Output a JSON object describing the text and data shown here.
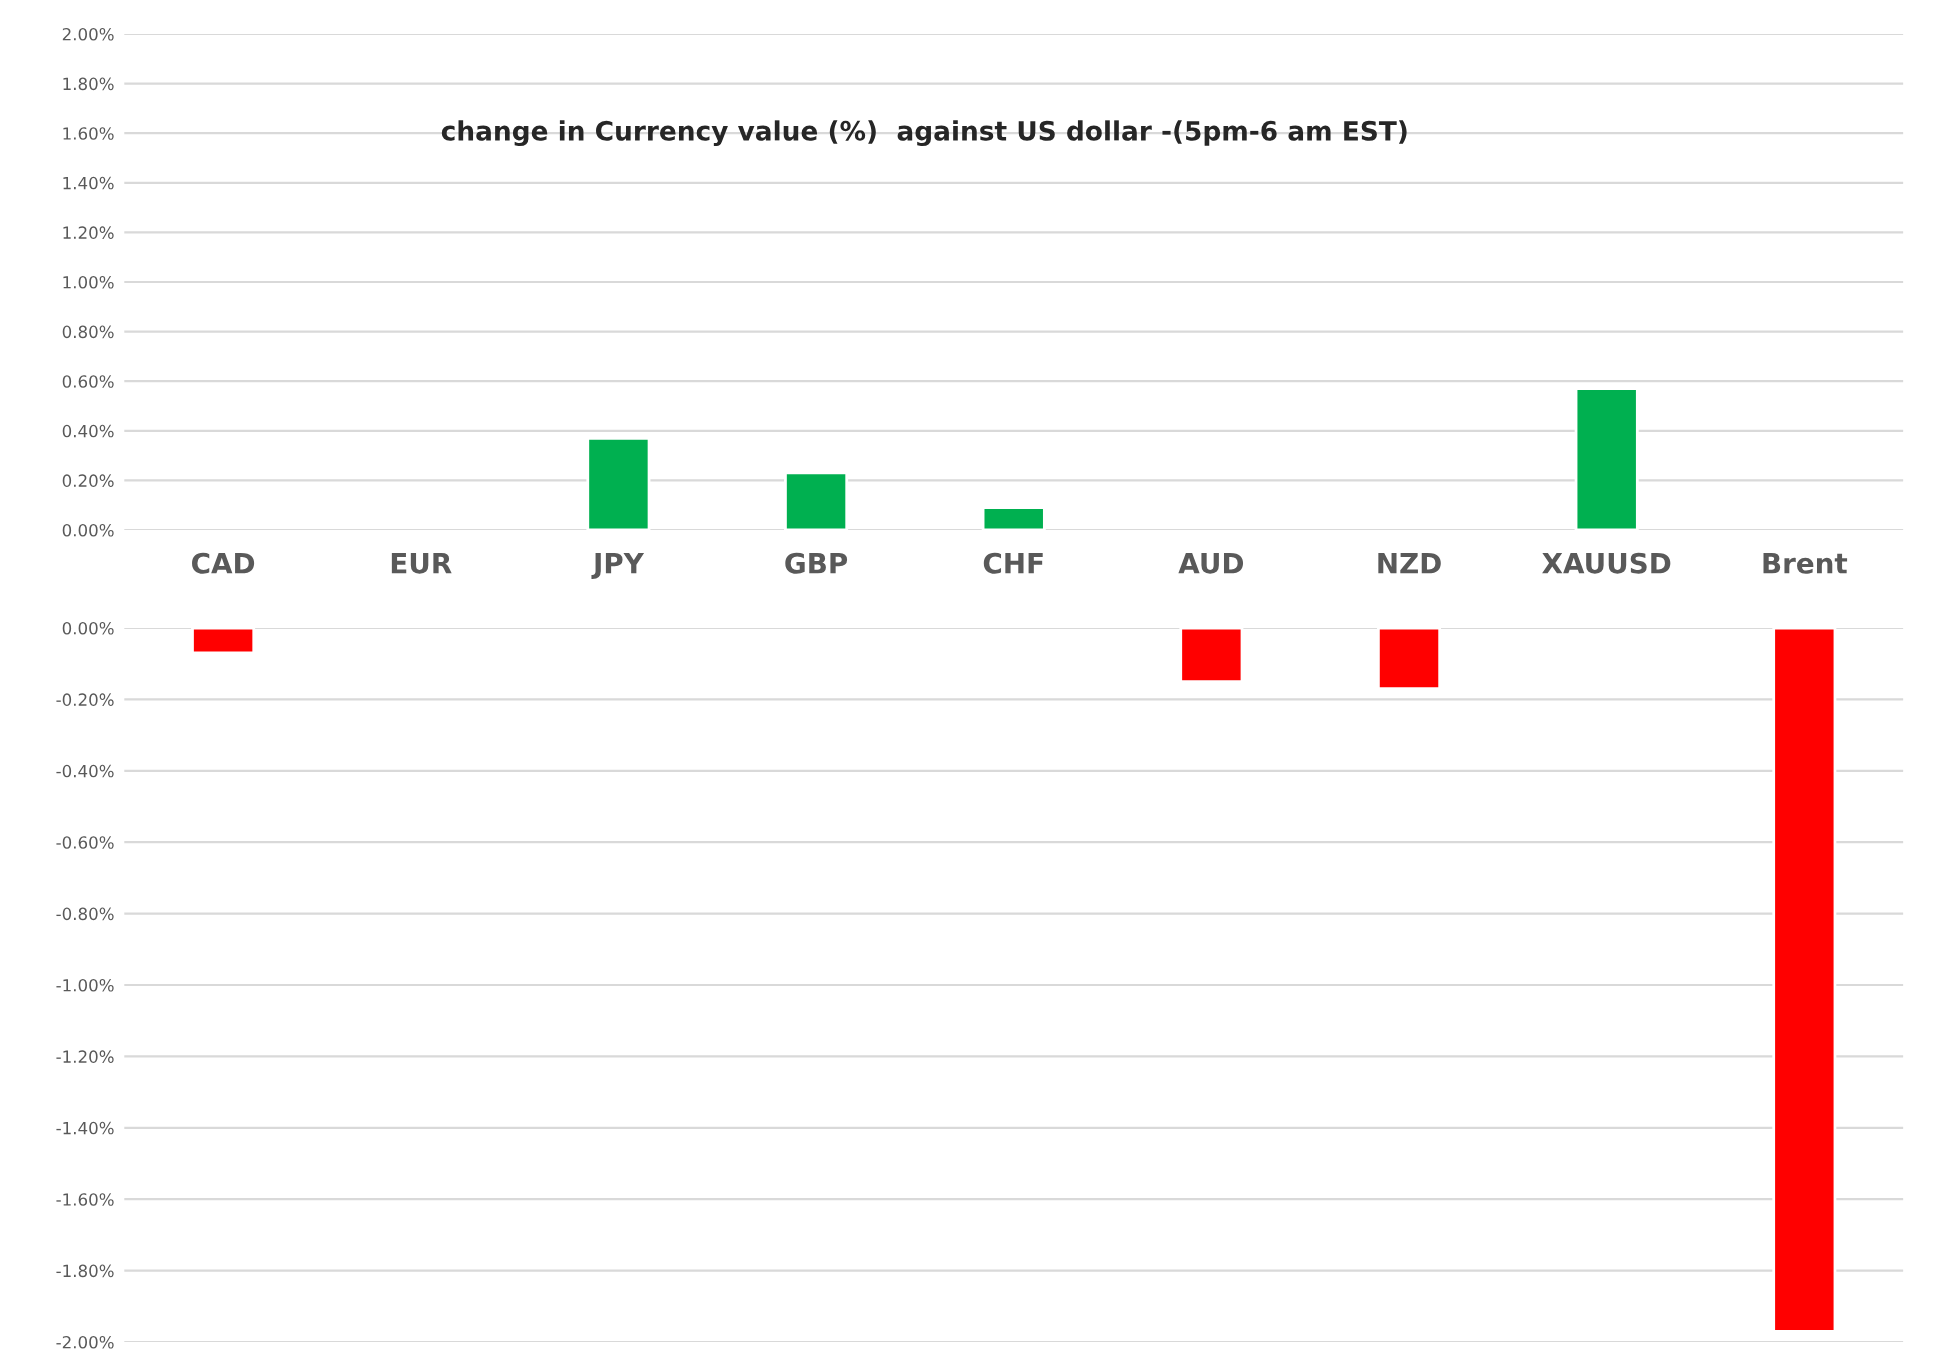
{
  "chart_data": [
    {
      "type": "bar",
      "title": "change in Currency value (%)  against US dollar -(5pm-6 am EST)",
      "categories": [
        "CAD",
        "EUR",
        "JPY",
        "GBP",
        "CHF",
        "AUD",
        "NZD",
        "XAUUSD",
        "Brent"
      ],
      "values": [
        null,
        null,
        0.37,
        0.23,
        0.09,
        null,
        null,
        0.57,
        null
      ],
      "color": "#00b050",
      "ylim": [
        0,
        2
      ],
      "yticks": [
        {
          "value": 0,
          "label": "0.00%"
        },
        {
          "value": 0.2,
          "label": "0.20%"
        },
        {
          "value": 0.4,
          "label": "0.40%"
        },
        {
          "value": 0.6,
          "label": "0.60%"
        },
        {
          "value": 0.8,
          "label": "0.80%"
        },
        {
          "value": 1.0,
          "label": "1.00%"
        },
        {
          "value": 1.2,
          "label": "1.20%"
        },
        {
          "value": 1.4,
          "label": "1.40%"
        },
        {
          "value": 1.6,
          "label": "1.60%"
        },
        {
          "value": 1.8,
          "label": "1.80%"
        },
        {
          "value": 2.0,
          "label": "2.00%"
        }
      ],
      "grid": "y"
    },
    {
      "type": "bar",
      "categories": [
        null,
        null,
        null,
        null,
        null,
        null,
        null,
        null,
        null
      ],
      "values": [
        -0.07,
        null,
        null,
        null,
        null,
        -0.15,
        -0.17,
        null,
        -1.97
      ],
      "color": "#ff0000",
      "ylim": [
        -2,
        0
      ],
      "yticks": [
        {
          "value": 0,
          "label": "0.00%"
        },
        {
          "value": -0.2,
          "label": "-0.20%"
        },
        {
          "value": -0.4,
          "label": "-0.40%"
        },
        {
          "value": -0.6,
          "label": "-0.60%"
        },
        {
          "value": -0.8,
          "label": "-0.80%"
        },
        {
          "value": -1.0,
          "label": "-1.00%"
        },
        {
          "value": -1.2,
          "label": "-1.20%"
        },
        {
          "value": -1.4,
          "label": "-1.40%"
        },
        {
          "value": -1.6,
          "label": "-1.60%"
        },
        {
          "value": -1.8,
          "label": "-1.80%"
        },
        {
          "value": -2.0,
          "label": "-2.00%"
        }
      ],
      "grid": "y",
      "tick_labels": "y"
    }
  ]
}
